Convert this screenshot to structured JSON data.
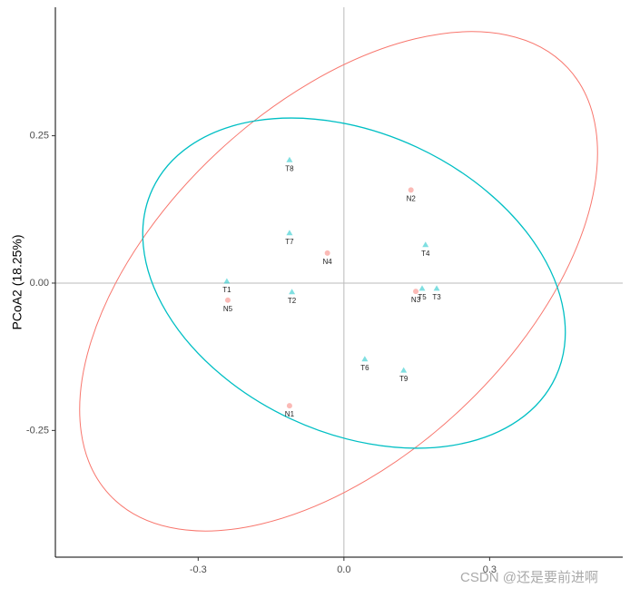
{
  "chart_data": {
    "type": "scatter",
    "ylabel": "PCoA2 (18.25%)",
    "xlim": [
      -0.594,
      0.574
    ],
    "ylim": [
      -0.465,
      0.468
    ],
    "xticks": [
      -0.3,
      {
        "value": 0,
        "label": "0.0"
      },
      0.3
    ],
    "yticks": [
      -0.25,
      {
        "value": 0,
        "label": "0.00"
      },
      0.25
    ],
    "series": [
      {
        "color": "#F8766D",
        "marker": "circle",
        "labels": [
          "N1",
          "N2",
          "N3",
          "N4",
          "N5"
        ],
        "x": [
          -0.112,
          0.138,
          0.148,
          -0.034,
          -0.239
        ],
        "values": [
          -0.208,
          0.158,
          -0.014,
          0.051,
          -0.029
        ]
      },
      {
        "color": "#00BFC4",
        "marker": "triangle",
        "labels": [
          "T1",
          "T2",
          "T3",
          "T4",
          "T5",
          "T6",
          "T7",
          "T8",
          "T9"
        ],
        "x": [
          -0.241,
          -0.107,
          0.191,
          0.168,
          0.161,
          0.043,
          -0.112,
          -0.112,
          0.123
        ],
        "values": [
          0.003,
          -0.015,
          -0.009,
          0.065,
          -0.009,
          -0.129,
          0.085,
          0.209,
          -0.148
        ]
      }
    ],
    "watermark": "CSDN @还是要前进啊"
  }
}
